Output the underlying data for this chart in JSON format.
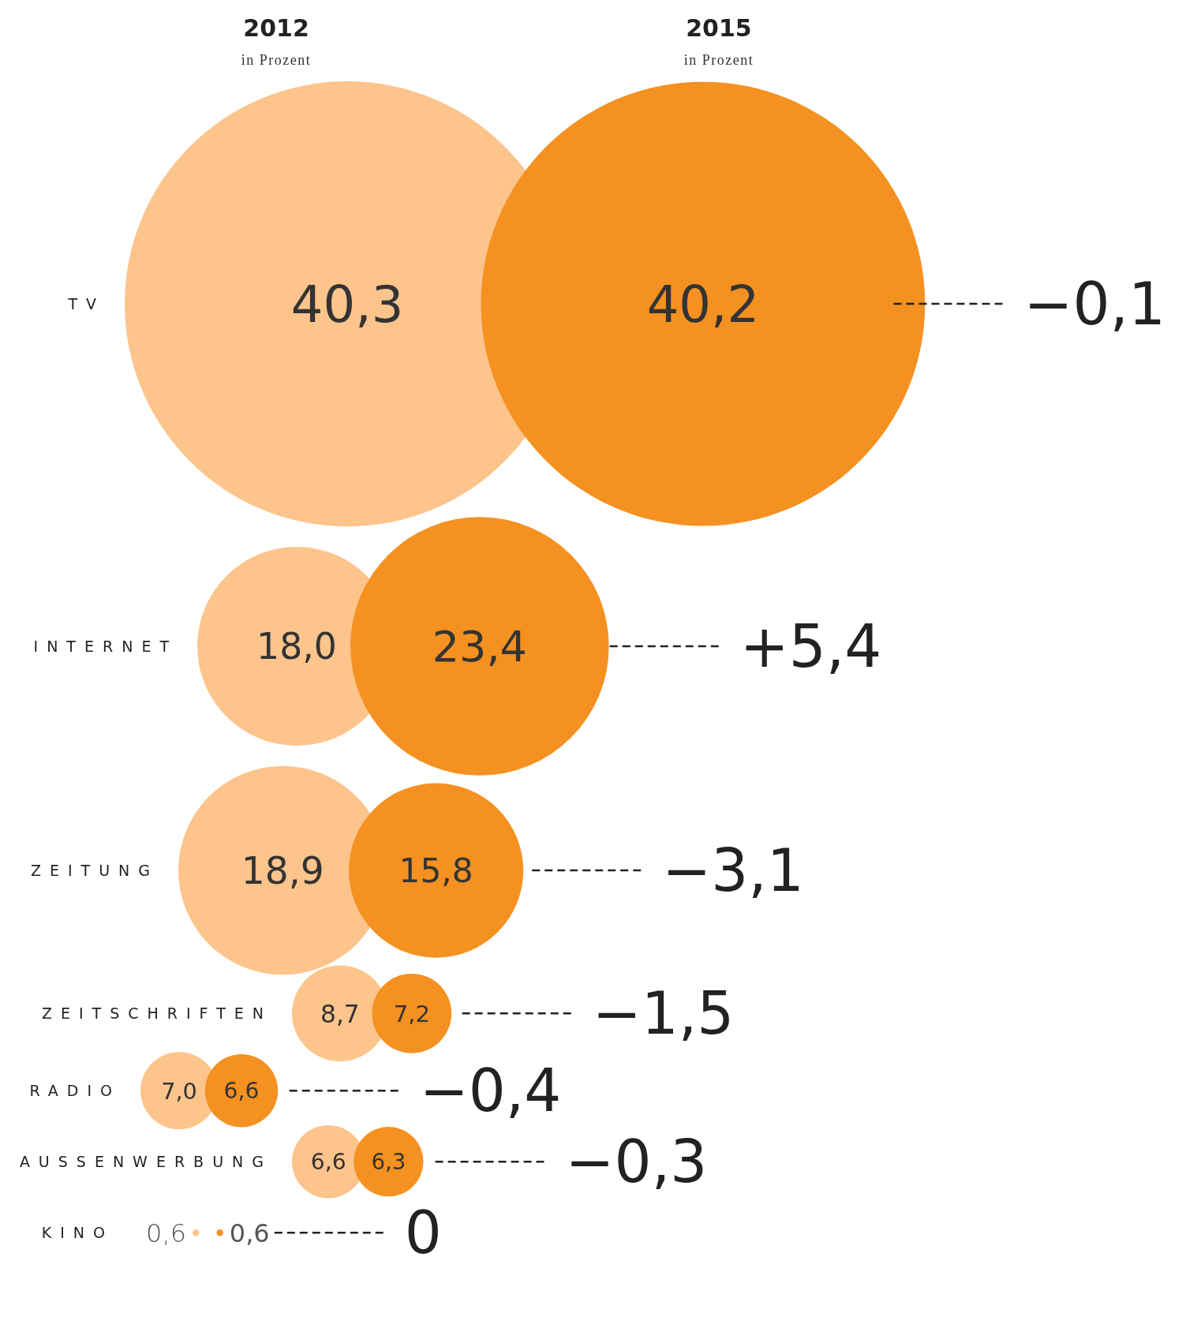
{
  "chart_data": {
    "type": "other",
    "subtitle": "in Prozent",
    "categories": [
      "TV",
      "INTERNET",
      "ZEITUNG",
      "ZEITSCHRIFTEN",
      "RADIO",
      "AUSSENWERBUNG",
      "KINO"
    ],
    "series": [
      {
        "name": "2012",
        "color": "#fdc48c",
        "values": [
          40.3,
          18.0,
          18.9,
          8.7,
          7.0,
          6.6,
          0.6
        ],
        "value_labels": [
          "40,3",
          "18,0",
          "18,9",
          "8,7",
          "7,0",
          "6,6",
          "0,6"
        ]
      },
      {
        "name": "2015",
        "color": "#f59120",
        "values": [
          40.2,
          23.4,
          15.8,
          7.2,
          6.6,
          6.3,
          0.6
        ],
        "value_labels": [
          "40,2",
          "23,4",
          "15,8",
          "7,2",
          "6,6",
          "6,3",
          "0,6"
        ]
      }
    ],
    "annotations": [
      "−0,1",
      "+5,4",
      "−3,1",
      "−1,5",
      "−0,4",
      "−0,3",
      "0"
    ]
  }
}
